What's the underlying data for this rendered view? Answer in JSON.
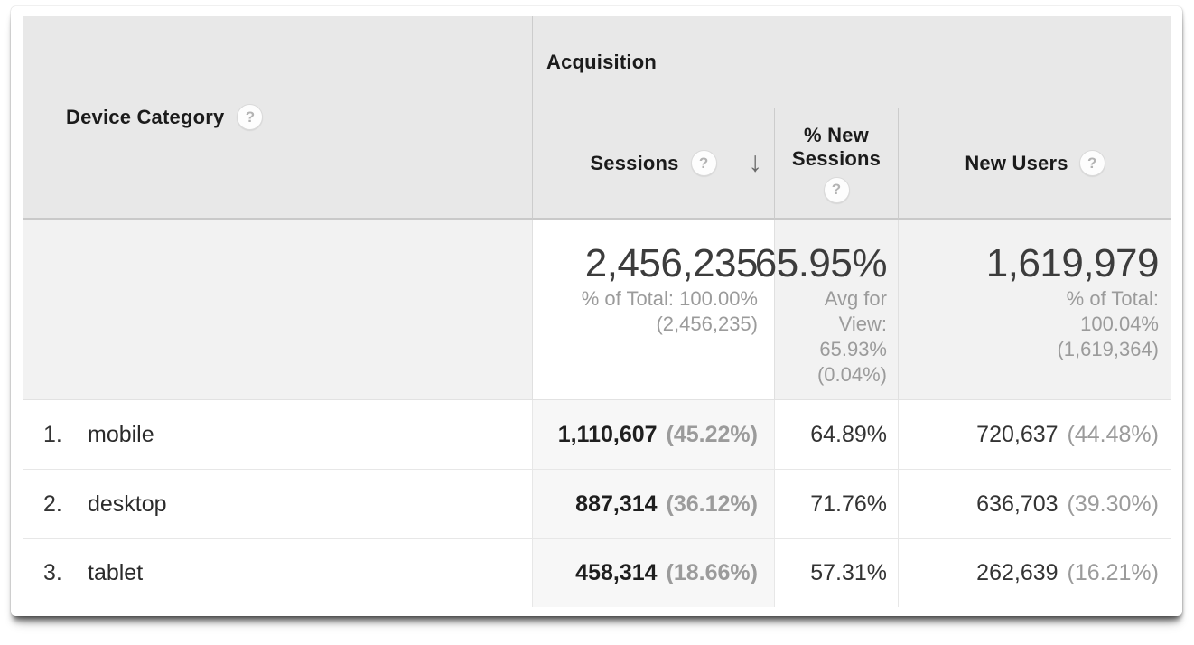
{
  "icons": {
    "help": "?",
    "sort_desc": "↓"
  },
  "colors": {
    "header_bg": "#e8e8e8",
    "summary_bg": "#f2f2f2",
    "sorted_column_bg": "#f7f7f7",
    "secondary_text": "#9b9b9b",
    "value_text": "#3c3c3c",
    "border": "#e7e7e7"
  },
  "table": {
    "dimension_header": "Device Category",
    "group_header": "Acquisition",
    "metric_headers": {
      "sessions": "Sessions",
      "new_sessions": "% New Sessions",
      "new_users": "New Users"
    },
    "sorted_column": "Sessions",
    "sort_direction": "descending",
    "summary": {
      "sessions": {
        "value": "2,456,235",
        "sub1": "% of Total: 100.00%",
        "sub2": "(2,456,235)"
      },
      "new_sessions": {
        "value": "65.95%",
        "sub1": "Avg for View:",
        "sub2": "65.93%",
        "sub3": "(0.04%)"
      },
      "new_users": {
        "value": "1,619,979",
        "sub1": "% of Total:",
        "sub2": "100.04%",
        "sub3": "(1,619,364)"
      }
    },
    "rows": [
      {
        "rank": "1.",
        "device": "mobile",
        "sessions": "1,110,607",
        "sessions_pct": "(45.22%)",
        "new_sessions_pct": "64.89%",
        "new_users": "720,637",
        "new_users_pct": "(44.48%)"
      },
      {
        "rank": "2.",
        "device": "desktop",
        "sessions": "887,314",
        "sessions_pct": "(36.12%)",
        "new_sessions_pct": "71.76%",
        "new_users": "636,703",
        "new_users_pct": "(39.30%)"
      },
      {
        "rank": "3.",
        "device": "tablet",
        "sessions": "458,314",
        "sessions_pct": "(18.66%)",
        "new_sessions_pct": "57.31%",
        "new_users": "262,639",
        "new_users_pct": "(16.21%)"
      }
    ]
  }
}
